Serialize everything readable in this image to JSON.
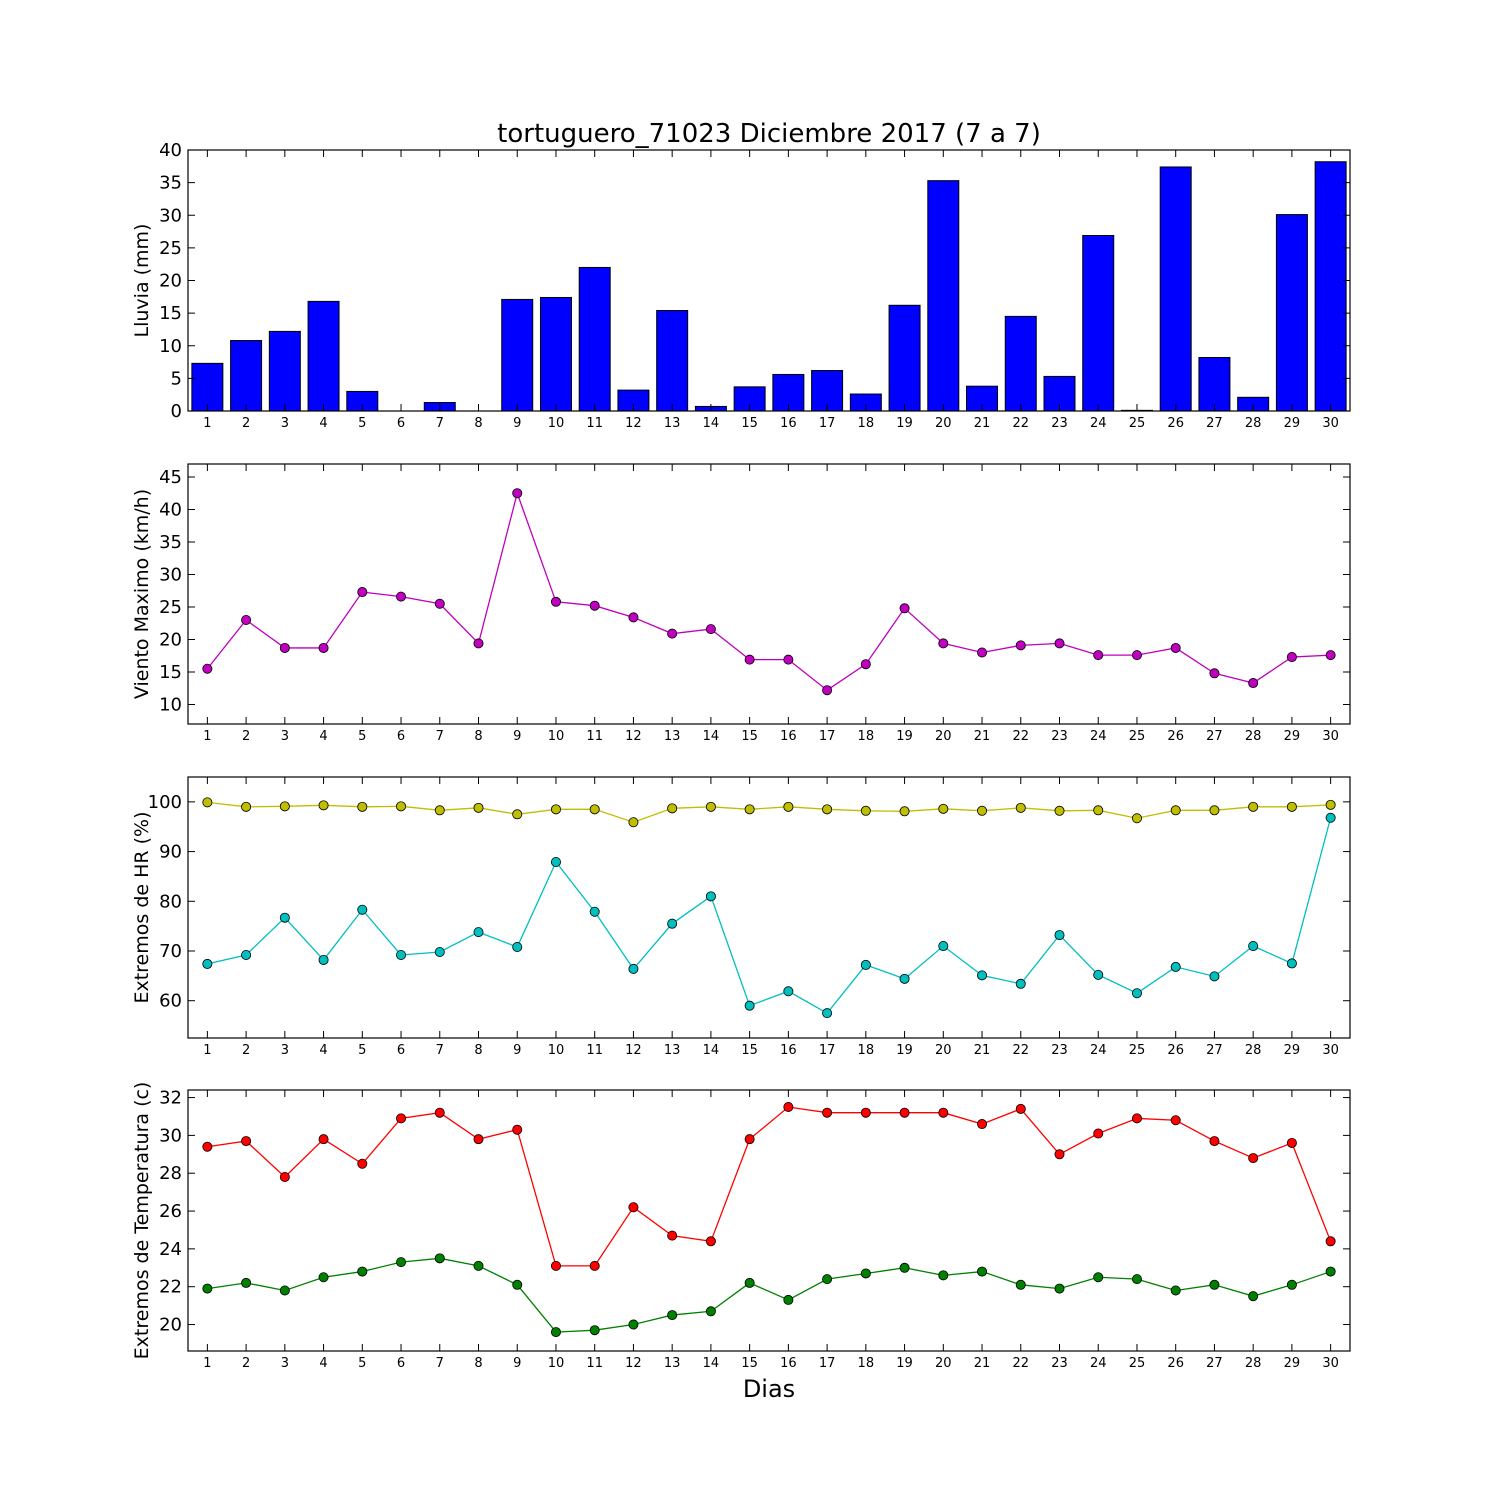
{
  "chart_data": [
    {
      "type": "bar",
      "title": "tortuguero_71023 Diciembre 2017  (7 a 7)",
      "ylabel": "Lluvia (mm)",
      "xlabel": "",
      "ylim": [
        0,
        40
      ],
      "yticks": [
        0,
        5,
        10,
        15,
        20,
        25,
        30,
        35,
        40
      ],
      "categories": [
        1,
        2,
        3,
        4,
        5,
        6,
        7,
        8,
        9,
        10,
        11,
        12,
        13,
        14,
        15,
        16,
        17,
        18,
        19,
        20,
        21,
        22,
        23,
        24,
        25,
        26,
        27,
        28,
        29,
        30
      ],
      "series": [
        {
          "color": "#0000ff",
          "values": [
            7.3,
            10.8,
            12.2,
            16.8,
            3.0,
            0.0,
            1.3,
            0.0,
            17.1,
            17.4,
            22.0,
            3.2,
            15.4,
            0.7,
            3.7,
            5.6,
            6.2,
            2.6,
            16.2,
            35.3,
            3.8,
            14.5,
            5.3,
            26.9,
            0.1,
            37.4,
            8.2,
            2.1,
            30.1,
            38.2
          ]
        }
      ],
      "grid": false
    },
    {
      "type": "line",
      "title": "",
      "ylabel": "Viento Maximo (km/h)",
      "xlabel": "",
      "ylim": [
        7,
        47
      ],
      "yticks": [
        10,
        15,
        20,
        25,
        30,
        35,
        40,
        45
      ],
      "categories": [
        1,
        2,
        3,
        4,
        5,
        6,
        7,
        8,
        9,
        10,
        11,
        12,
        13,
        14,
        15,
        16,
        17,
        18,
        19,
        20,
        21,
        22,
        23,
        24,
        25,
        26,
        27,
        28,
        29,
        30
      ],
      "series": [
        {
          "color": "#bf00bf",
          "values": [
            15.5,
            23.0,
            18.7,
            18.7,
            27.3,
            26.6,
            25.5,
            19.4,
            42.5,
            25.8,
            25.2,
            23.4,
            20.9,
            21.6,
            16.9,
            16.9,
            12.2,
            16.2,
            24.8,
            19.4,
            18.0,
            19.1,
            19.4,
            17.6,
            17.6,
            18.7,
            14.8,
            13.3,
            17.3,
            17.6
          ]
        }
      ],
      "grid": false
    },
    {
      "type": "line",
      "title": "",
      "ylabel": "Extremos de HR (%)",
      "xlabel": "",
      "ylim": [
        52.5,
        105
      ],
      "yticks": [
        60,
        70,
        80,
        90,
        100
      ],
      "categories": [
        1,
        2,
        3,
        4,
        5,
        6,
        7,
        8,
        9,
        10,
        11,
        12,
        13,
        14,
        15,
        16,
        17,
        18,
        19,
        20,
        21,
        22,
        23,
        24,
        25,
        26,
        27,
        28,
        29,
        30
      ],
      "series": [
        {
          "color": "#bfbf00",
          "values": [
            99.9,
            99.0,
            99.1,
            99.3,
            99.0,
            99.1,
            98.3,
            98.8,
            97.5,
            98.5,
            98.5,
            95.9,
            98.7,
            99.0,
            98.5,
            99.0,
            98.5,
            98.2,
            98.1,
            98.6,
            98.2,
            98.8,
            98.2,
            98.3,
            96.7,
            98.3,
            98.3,
            99.0,
            99.0,
            99.4
          ]
        },
        {
          "color": "#00bfbf",
          "values": [
            67.4,
            69.2,
            76.7,
            68.2,
            78.3,
            69.2,
            69.8,
            73.8,
            70.8,
            87.9,
            77.9,
            66.4,
            75.5,
            81.0,
            59.0,
            61.9,
            57.5,
            67.2,
            64.4,
            71.0,
            65.1,
            63.4,
            73.2,
            65.2,
            61.5,
            66.8,
            64.9,
            71.0,
            67.5,
            96.8
          ]
        }
      ],
      "grid": false
    },
    {
      "type": "line",
      "title": "",
      "ylabel": "Extremos de Temperatura (c)",
      "xlabel": "Dias",
      "ylim": [
        18.6,
        32.4
      ],
      "yticks": [
        20,
        22,
        24,
        26,
        28,
        30,
        32
      ],
      "categories": [
        1,
        2,
        3,
        4,
        5,
        6,
        7,
        8,
        9,
        10,
        11,
        12,
        13,
        14,
        15,
        16,
        17,
        18,
        19,
        20,
        21,
        22,
        23,
        24,
        25,
        26,
        27,
        28,
        29,
        30
      ],
      "series": [
        {
          "color": "#ff0000",
          "values": [
            29.4,
            29.7,
            27.8,
            29.8,
            28.5,
            30.9,
            31.2,
            29.8,
            30.3,
            23.1,
            23.1,
            26.2,
            24.7,
            24.4,
            29.8,
            31.5,
            31.2,
            31.2,
            31.2,
            31.2,
            30.6,
            31.4,
            29.0,
            30.1,
            30.9,
            30.8,
            29.7,
            28.8,
            29.6,
            24.4
          ]
        },
        {
          "color": "#008000",
          "values": [
            21.9,
            22.2,
            21.8,
            22.5,
            22.8,
            23.3,
            23.5,
            23.1,
            22.1,
            19.6,
            19.7,
            20.0,
            20.5,
            20.7,
            22.2,
            21.3,
            22.4,
            22.7,
            23.0,
            22.6,
            22.8,
            22.1,
            21.9,
            22.5,
            22.4,
            21.8,
            22.1,
            21.5,
            22.1,
            22.8
          ]
        }
      ],
      "grid": false
    }
  ]
}
